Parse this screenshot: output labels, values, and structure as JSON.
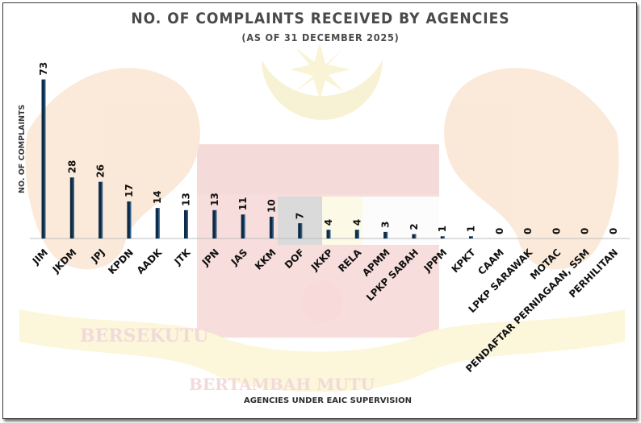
{
  "title": "NO. OF COMPLAINTS RECEIVED BY AGENCIES",
  "subtitle": "(AS OF 31 DECEMBER 2025)",
  "colors": {
    "bar": "#0f2a44",
    "bar_highlight": "#2f5f8a",
    "text": "#111111",
    "axis": "#bdbdbd"
  },
  "watermark": {
    "motto_left": "BERSEKUTU",
    "motto_right": "BERTAMBAH MUTU",
    "emblem": "malaysia-coat-of-arms"
  },
  "chart_data": {
    "type": "bar",
    "title": "NO. OF COMPLAINTS RECEIVED BY AGENCIES",
    "subtitle": "(AS OF 31 DECEMBER 2025)",
    "xlabel": "AGENCIES UNDER EAIC SUPERVISION",
    "ylabel": "NO. OF COMPLAINTS",
    "categories": [
      "JIM",
      "JKDM",
      "JPJ",
      "KPDN",
      "AADK",
      "JTK",
      "JPN",
      "JAS",
      "KKM",
      "DOF",
      "JKKP",
      "RELA",
      "APMM",
      "LPKP SABAH",
      "JPPM",
      "KPKT",
      "CAAM",
      "LPKP SARAWAK",
      "MOTAC",
      "PENDAFTAR PERNIAGAAN, SSM",
      "PERHILITAN"
    ],
    "values": [
      73,
      28,
      26,
      17,
      14,
      13,
      13,
      11,
      10,
      7,
      4,
      4,
      3,
      2,
      1,
      1,
      0,
      0,
      0,
      0,
      0
    ],
    "ylim": [
      0,
      76
    ],
    "grid": false,
    "legend": "none"
  }
}
